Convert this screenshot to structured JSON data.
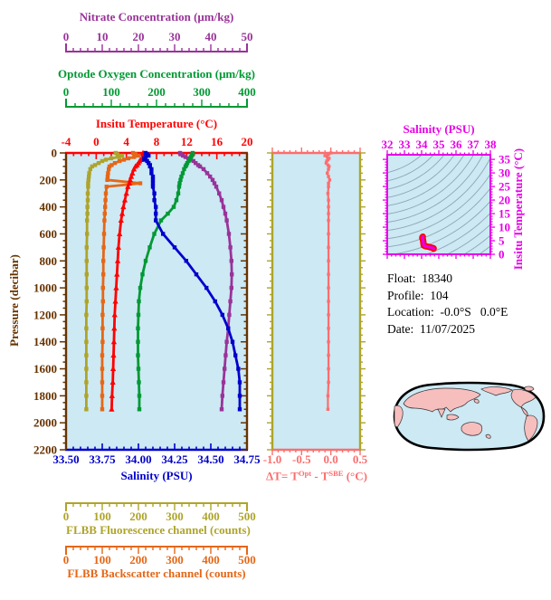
{
  "info": {
    "float_label": "Float:",
    "float_value": "18340",
    "profile_label": "Profile:",
    "profile_value": "104",
    "location_label": "Location:",
    "location_value": "-0.0°S   0.0°E",
    "date_label": "Date:",
    "date_value": "11/07/2025"
  },
  "map": {
    "type": "world-map",
    "projection": "global oval, Pacific-centered",
    "ocean_color": "#CCE9F4",
    "land_color": "#F7BEBE",
    "outline_color": "#000000"
  },
  "chart_data": {
    "type": "line",
    "description": "Argo float vertical profiles versus pressure, with Optode-SBE temperature difference panel and T-S diagram with density contours",
    "plot_background": "#CCE9F4",
    "axes": {
      "nitrate": {
        "title": "Nitrate Concentration (μm/kg)",
        "color": "#993399",
        "min": 0,
        "max": 50,
        "ticks": [
          0,
          10,
          20,
          30,
          40,
          50
        ],
        "minor_step": 2
      },
      "oxygen": {
        "title": "Optode Oxygen Concentration (μm/kg)",
        "color": "#009933",
        "min": 0,
        "max": 400,
        "ticks": [
          0,
          100,
          200,
          300,
          400
        ],
        "minor_step": 20
      },
      "temperature": {
        "title": "Insitu Temperature (°C)",
        "color": "#FF0000",
        "min": -4,
        "max": 20,
        "ticks": [
          -4,
          0,
          4,
          8,
          12,
          16,
          20
        ],
        "minor_step": 1
      },
      "pressure": {
        "title": "Pressure (decibar)",
        "color": "#663300",
        "min": 0,
        "max": 2200,
        "ticks": [
          0,
          200,
          400,
          600,
          800,
          1000,
          1200,
          1400,
          1600,
          1800,
          2000,
          2200
        ],
        "minor_step": 50
      },
      "salinity": {
        "title": "Salinity (PSU)",
        "color": "#0000CC",
        "min": 33.5,
        "max": 34.75,
        "ticks": [
          "33.50",
          "33.75",
          "34.00",
          "34.25",
          "34.50",
          "34.75"
        ],
        "minor_step": 0.05
      },
      "fluorescence": {
        "title": "FLBB Fluorescence channel (counts)",
        "color": "#AEA42A",
        "min": 0,
        "max": 500,
        "ticks": [
          0,
          100,
          200,
          300,
          400,
          500
        ],
        "minor_step": 20
      },
      "backscatter": {
        "title": "FLBB Backscatter channel (counts)",
        "color": "#E56717",
        "min": 0,
        "max": 500,
        "ticks": [
          0,
          100,
          200,
          300,
          400,
          500
        ],
        "minor_step": 20
      },
      "delta_t": {
        "title": "ΔT= TOpt - TSBE (°C)",
        "color": "#FC6E6E",
        "min": -1.0,
        "max": 0.5,
        "ticks": [
          "-1.0",
          "-0.5",
          "0.0",
          "0.5"
        ],
        "minor_step": 0.1,
        "label_parts": {
          "prefix": "ΔT= T",
          "sup1": "Opt",
          "mid": " - T",
          "sup2": "SBE",
          "suffix": " (°C)"
        }
      },
      "ts_salinity": {
        "title": "Salinity (PSU)",
        "color": "#E800E8",
        "min": 32,
        "max": 38,
        "ticks": [
          32,
          33,
          34,
          35,
          36,
          37,
          38
        ],
        "minor_step": 0.25
      },
      "ts_temperature": {
        "title": "Insitu Temperature (°C)",
        "color": "#E800E8",
        "min": 0,
        "max": 36.7,
        "ticks": [
          0,
          5,
          10,
          15,
          20,
          25,
          30,
          35
        ],
        "minor_step": 1
      }
    },
    "pressure_dbar": [
      0,
      10,
      20,
      30,
      40,
      50,
      60,
      75,
      90,
      100,
      120,
      150,
      175,
      200,
      225,
      250,
      300,
      350,
      400,
      450,
      500,
      600,
      700,
      800,
      900,
      1000,
      1100,
      1200,
      1300,
      1400,
      1500,
      1600,
      1700,
      1800,
      1900
    ],
    "series": [
      {
        "name": "FLBB Fluorescence channel",
        "axis": "fluorescence",
        "color": "#AEA42A",
        "marker": "square",
        "values": [
          137,
          142,
          155,
          147,
          125,
          110,
          100,
          90,
          80,
          72,
          67,
          64,
          63,
          62,
          61,
          61,
          60,
          60,
          59,
          59,
          58,
          58,
          57,
          57,
          57,
          57,
          57,
          56,
          56,
          56,
          56,
          56,
          56,
          56,
          56
        ]
      },
      {
        "name": "FLBB Backscatter channel",
        "axis": "backscatter",
        "color": "#E56717",
        "marker": "square",
        "values": [
          185,
          192,
          200,
          188,
          172,
          160,
          148,
          135,
          126,
          120,
          118,
          116,
          115,
          114,
          205,
          112,
          110,
          109,
          108,
          107,
          106,
          105,
          104,
          103,
          103,
          102,
          102,
          101,
          101,
          101,
          100,
          100,
          100,
          100,
          100
        ]
      },
      {
        "name": "Nitrate Concentration",
        "axis": "nitrate",
        "color": "#993399",
        "marker": "square",
        "values": [
          31.5,
          31.8,
          32.3,
          33.0,
          33.8,
          34.5,
          35.2,
          35.8,
          36.5,
          37.0,
          38.0,
          39.0,
          39.8,
          40.5,
          41.0,
          41.5,
          42.3,
          43.0,
          43.5,
          44.0,
          44.4,
          45.0,
          45.4,
          45.7,
          45.8,
          45.7,
          45.4,
          45.1,
          44.8,
          44.4,
          44.1,
          43.8,
          43.5,
          43.2,
          43.0
        ]
      },
      {
        "name": "Optode Oxygen Concentration",
        "axis": "oxygen",
        "color": "#009933",
        "marker": "square",
        "values": [
          280,
          279,
          278,
          276,
          275,
          273,
          271,
          268,
          266,
          264,
          261,
          258,
          255,
          253,
          251,
          250,
          248,
          244,
          238,
          225,
          210,
          195,
          185,
          176,
          169,
          164,
          161,
          160,
          159,
          159,
          159,
          160,
          161,
          162,
          162
        ]
      },
      {
        "name": "Insitu Temperature",
        "axis": "temperature",
        "color": "#FF0000",
        "marker": "triangle",
        "values": [
          6.2,
          6.3,
          6.5,
          6.4,
          6.1,
          5.9,
          5.75,
          5.6,
          5.4,
          5.2,
          5.0,
          4.8,
          4.65,
          4.5,
          4.4,
          4.2,
          4.0,
          3.8,
          3.6,
          3.45,
          3.3,
          3.1,
          2.95,
          2.85,
          2.75,
          2.65,
          2.55,
          2.45,
          2.4,
          2.35,
          2.3,
          2.25,
          2.2,
          2.1,
          2.05
        ]
      },
      {
        "name": "Salinity",
        "axis": "salinity",
        "color": "#0000CC",
        "marker": "square",
        "values": [
          34.05,
          34.06,
          34.07,
          34.05,
          34.04,
          34.04,
          34.06,
          34.07,
          34.08,
          34.08,
          34.09,
          34.09,
          34.1,
          34.1,
          34.1,
          34.1,
          34.11,
          34.11,
          34.12,
          34.12,
          34.12,
          34.17,
          34.25,
          34.33,
          34.4,
          34.47,
          34.53,
          34.58,
          34.62,
          34.65,
          34.67,
          34.69,
          34.7,
          34.7,
          34.7
        ]
      }
    ],
    "delta_t_series": {
      "name": "ΔT Optode minus SBE",
      "color": "#FC6E6E",
      "marker": "square",
      "values": [
        0.0,
        -0.04,
        -0.1,
        -0.06,
        -0.03,
        -0.05,
        -0.07,
        -0.08,
        -0.05,
        -0.03,
        -0.04,
        -0.06,
        -0.04,
        -0.02,
        -0.04,
        -0.04,
        -0.05,
        -0.04,
        -0.04,
        -0.04,
        -0.04,
        -0.04,
        -0.04,
        -0.04,
        -0.04,
        -0.04,
        -0.04,
        -0.04,
        -0.04,
        -0.04,
        -0.04,
        -0.04,
        -0.04,
        -0.05,
        -0.05
      ]
    },
    "ts_diagram": {
      "title": "Salinity (PSU)",
      "curve_color": "#E800E8",
      "curve_outline": "#FF0000",
      "contour_color": "#8FA5B5",
      "note": "curve is salinity vs temperature from series; gray curves are density contours"
    }
  }
}
